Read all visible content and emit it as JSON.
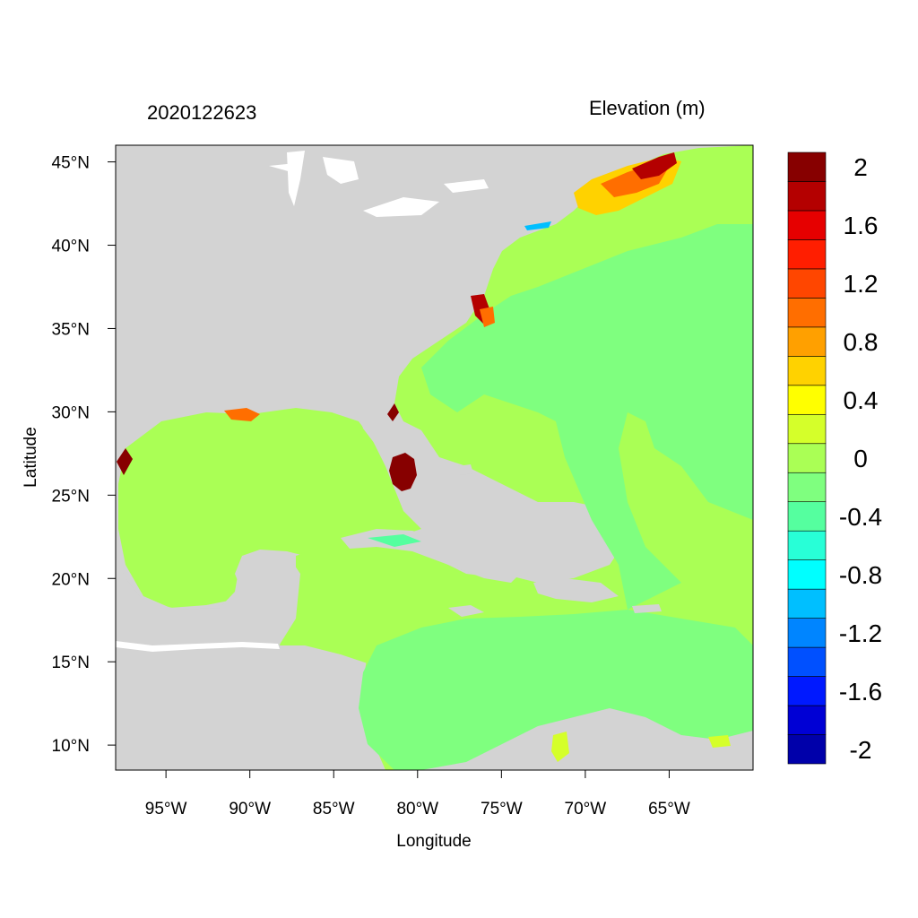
{
  "titles": {
    "left": "2020122623",
    "right": "Elevation (m)"
  },
  "axes": {
    "xlabel": "Longitude",
    "ylabel": "Latitude",
    "x_ticks": [
      "95°W",
      "90°W",
      "85°W",
      "80°W",
      "75°W",
      "70°W",
      "65°W"
    ],
    "y_ticks": [
      "10°N",
      "15°N",
      "20°N",
      "25°N",
      "30°N",
      "35°N",
      "40°N",
      "45°N"
    ]
  },
  "colors": {
    "land": "#d3d3d3",
    "ocean_base": "#aaff55",
    "colorbar": [
      "#0000aa",
      "#0000d5",
      "#0019ff",
      "#0050ff",
      "#0085ff",
      "#00bfff",
      "#00ffff",
      "#28ffd7",
      "#55ff9f",
      "#7fff7f",
      "#aaff55",
      "#d5ff2a",
      "#ffff00",
      "#ffd200",
      "#ffa000",
      "#ff6e00",
      "#ff4600",
      "#ff1e00",
      "#e60000",
      "#b40000",
      "#870000"
    ]
  },
  "colorbar": {
    "labels": [
      "-2",
      "-1.6",
      "-1.2",
      "-0.8",
      "-0.4",
      "0",
      "0.4",
      "0.8",
      "1.2",
      "1.6",
      "2"
    ]
  },
  "chart_data": {
    "type": "heatmap",
    "title": "2020122623",
    "subtitle": "Elevation (m)",
    "xlabel": "Longitude",
    "ylabel": "Latitude",
    "xlim": [
      -98,
      -60
    ],
    "ylim": [
      8.5,
      46
    ],
    "colorbar_range": [
      -2.1,
      2.1
    ],
    "colorbar_levels": [
      -2.0,
      -1.8,
      -1.6,
      -1.4,
      -1.2,
      -1.0,
      -0.8,
      -0.6,
      -0.4,
      -0.2,
      0.0,
      0.2,
      0.4,
      0.6,
      0.8,
      1.0,
      1.2,
      1.4,
      1.6,
      1.8,
      2.0
    ]
  }
}
